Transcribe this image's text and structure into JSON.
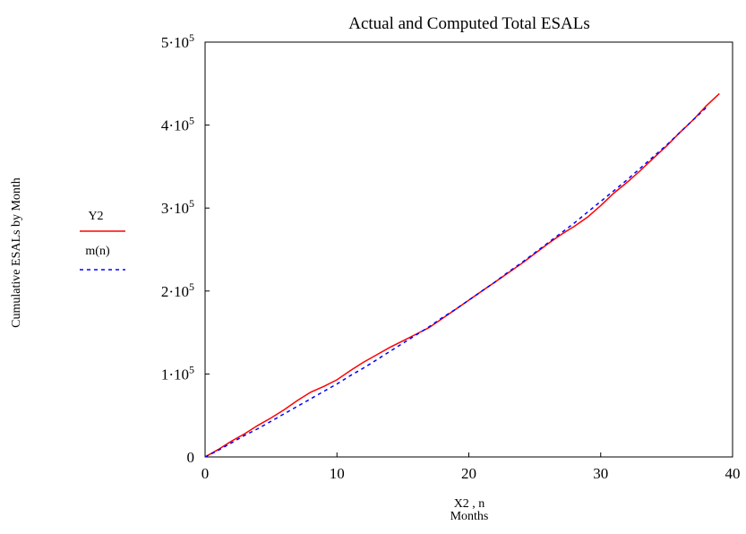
{
  "chart_data": {
    "type": "line",
    "title": "Actual and Computed Total ESALs",
    "ylabel": "Cumulative ESALs by Month",
    "xlabel": "X2 , n",
    "xlabel_sub": "Months",
    "xlim": [
      0,
      40
    ],
    "ylim": [
      0,
      500000
    ],
    "x_ticks": [
      {
        "value": 0,
        "label": "0"
      },
      {
        "value": 10,
        "label": "10"
      },
      {
        "value": 20,
        "label": "20"
      },
      {
        "value": 30,
        "label": "30"
      },
      {
        "value": 40,
        "label": "40"
      }
    ],
    "y_ticks": [
      {
        "value": 0,
        "label": "0",
        "mantissa": "",
        "exp": ""
      },
      {
        "value": 100000,
        "label": "1·10^5",
        "mantissa": "1·10",
        "exp": "5"
      },
      {
        "value": 200000,
        "label": "2·10^5",
        "mantissa": "2·10",
        "exp": "5"
      },
      {
        "value": 300000,
        "label": "3·10^5",
        "mantissa": "3·10",
        "exp": "5"
      },
      {
        "value": 400000,
        "label": "4·10^5",
        "mantissa": "4·10",
        "exp": "5"
      },
      {
        "value": 500000,
        "label": "5·10^5",
        "mantissa": "5·10",
        "exp": "5"
      }
    ],
    "grid": false,
    "legend_position": "left",
    "series": [
      {
        "name": "Y2",
        "color": "#ff0000",
        "style": "solid",
        "x": [
          0,
          1,
          2,
          3,
          4,
          5,
          6,
          7,
          8,
          9,
          10,
          11,
          12,
          13,
          14,
          15,
          16,
          17,
          18,
          19,
          20,
          21,
          22,
          23,
          24,
          25,
          26,
          27,
          28,
          29,
          30,
          31,
          32,
          33,
          34,
          35,
          36,
          37,
          38,
          39
        ],
        "y": [
          0,
          9000,
          19000,
          28000,
          38000,
          47000,
          57000,
          68000,
          78000,
          85000,
          93000,
          104000,
          114000,
          123000,
          132000,
          140000,
          148000,
          156000,
          167000,
          178000,
          189000,
          200000,
          211000,
          222000,
          233000,
          245000,
          257000,
          268000,
          278000,
          289000,
          303000,
          318000,
          331000,
          345000,
          360000,
          375000,
          391000,
          406000,
          423000,
          438000
        ]
      },
      {
        "name": "m(n)",
        "color": "#0000ff",
        "style": "dashed",
        "x": [
          0,
          1,
          2,
          3,
          4,
          5,
          6,
          7,
          8,
          9,
          10,
          11,
          12,
          13,
          14,
          15,
          16,
          17,
          18,
          19,
          20,
          21,
          22,
          23,
          24,
          25,
          26,
          27,
          28,
          29,
          30,
          31,
          32,
          33,
          34,
          35,
          36,
          37,
          38
        ],
        "y": [
          0,
          8000,
          17000,
          26000,
          34000,
          43000,
          52000,
          61000,
          70000,
          79000,
          88000,
          98000,
          107000,
          117000,
          127000,
          137000,
          147000,
          157000,
          168000,
          178000,
          189000,
          200000,
          211000,
          223000,
          234000,
          246000,
          258000,
          270000,
          282000,
          295000,
          308000,
          321000,
          334000,
          348000,
          362000,
          376000,
          391000,
          406000,
          421000
        ]
      }
    ]
  }
}
